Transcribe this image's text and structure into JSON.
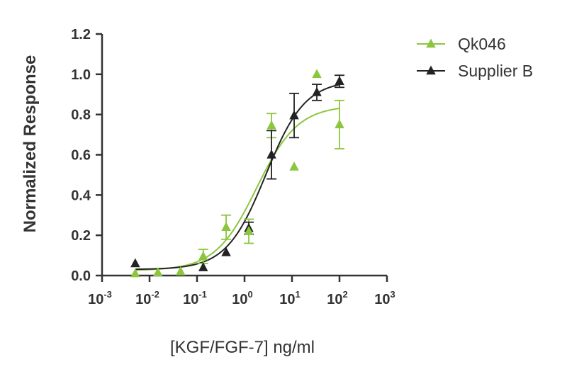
{
  "chart_data": {
    "type": "scatter",
    "xlabel": "[KGF/FGF-7] ng/ml",
    "ylabel": "Normalized Response",
    "xscale": "log",
    "xlim": [
      0.001,
      1000
    ],
    "ylim": [
      0,
      1.2
    ],
    "x_ticks": [
      {
        "base": "10",
        "exp": "-3"
      },
      {
        "base": "10",
        "exp": "-2"
      },
      {
        "base": "10",
        "exp": "-1"
      },
      {
        "base": "10",
        "exp": "0"
      },
      {
        "base": "10",
        "exp": "1"
      },
      {
        "base": "10",
        "exp": "2"
      },
      {
        "base": "10",
        "exp": "3"
      }
    ],
    "y_ticks": [
      "0.0",
      "0.2",
      "0.4",
      "0.6",
      "0.8",
      "1.0",
      "1.2"
    ],
    "y_tick_values": [
      0,
      0.2,
      0.4,
      0.6,
      0.8,
      1.0,
      1.2
    ],
    "grid": false,
    "legend_position": "top-right",
    "series": [
      {
        "name": "Qk046",
        "color": "#8cc63f",
        "marker": "triangle",
        "x": [
          0.005,
          0.015,
          0.045,
          0.135,
          0.41,
          1.23,
          3.7,
          11.1,
          33.3,
          100
        ],
        "y": [
          0.01,
          0.015,
          0.02,
          0.095,
          0.24,
          0.22,
          0.745,
          0.54,
          1.0,
          0.75
        ],
        "err": [
          0,
          0,
          0,
          0.035,
          0.06,
          0.06,
          0.06,
          0,
          0,
          0.12
        ],
        "fit": {
          "bottom": 0.025,
          "top": 0.845,
          "ec50": 1.8,
          "hill": 1.0
        }
      },
      {
        "name": "Supplier B",
        "color": "#222222",
        "marker": "triangle",
        "x": [
          0.005,
          0.135,
          0.41,
          1.23,
          3.7,
          11.1,
          33.3,
          100
        ],
        "y": [
          0.06,
          0.04,
          0.115,
          0.235,
          0.6,
          0.795,
          0.91,
          0.965
        ],
        "err": [
          0,
          0,
          0,
          0.03,
          0.12,
          0.11,
          0.04,
          0.03
        ],
        "fit": {
          "bottom": 0.03,
          "top": 0.97,
          "ec50": 2.8,
          "hill": 1.05
        }
      }
    ]
  }
}
